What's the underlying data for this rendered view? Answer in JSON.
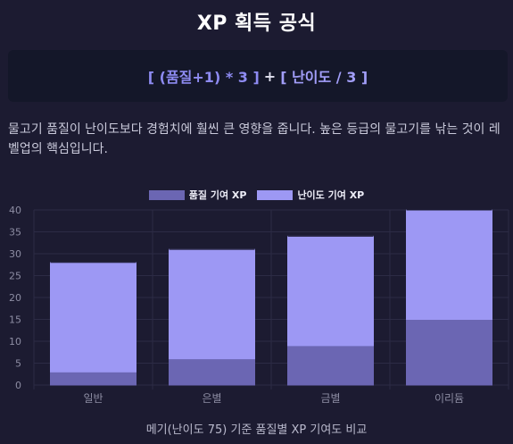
{
  "title": "XP 획득 공식",
  "formula": {
    "quality_part": "[ (품질+1) * 3 ]",
    "plus": "+",
    "difficulty_part": "[ 난이도 / 3 ]"
  },
  "description": "물고기 품질이 난이도보다 경험치에 훨씬 큰 영향을 줍니다. 높은 등급의 물고기를 낚는 것이 레벨업의 핵심입니다.",
  "colors": {
    "quality": "#6b66b3",
    "difficulty": "#9d98f4"
  },
  "chart_data": {
    "type": "bar",
    "stacked": true,
    "categories": [
      "일반",
      "은별",
      "금별",
      "이리듐"
    ],
    "series": [
      {
        "name": "품질 기여 XP",
        "values": [
          3,
          6,
          9,
          15
        ]
      },
      {
        "name": "난이도 기여 XP",
        "values": [
          25,
          25,
          25,
          25
        ]
      }
    ],
    "yticks": [
      0,
      5,
      10,
      15,
      20,
      25,
      30,
      35,
      40
    ],
    "ylim": [
      0,
      40
    ],
    "legend_position": "top",
    "caption": "메기(난이도 75) 기준 품질별 XP 기여도 비교"
  }
}
